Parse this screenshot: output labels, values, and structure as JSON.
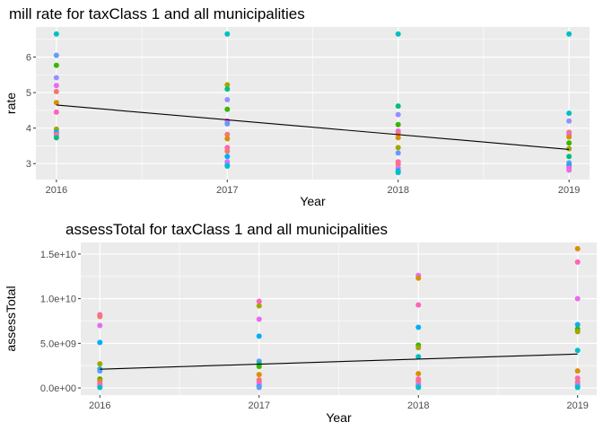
{
  "chart_data": [
    {
      "type": "scatter",
      "title": "mill rate for taxClass 1 and all municipalities",
      "xlabel": "Year",
      "ylabel": "rate",
      "x_ticks": [
        2016,
        2017,
        2018,
        2019
      ],
      "x_tick_labels": [
        "2016",
        "2017",
        "2018",
        "2019"
      ],
      "y_ticks": [
        3,
        4,
        5,
        6
      ],
      "y_tick_labels": [
        "3",
        "4",
        "5",
        "6"
      ],
      "xlim": [
        2015.88,
        2019.12
      ],
      "ylim": [
        2.55,
        6.85
      ],
      "grid": true,
      "legend": "none",
      "points": [
        {
          "x": 2016,
          "y": 6.65,
          "color": "#00BFC4"
        },
        {
          "x": 2016,
          "y": 6.05,
          "color": "#619CFF"
        },
        {
          "x": 2016,
          "y": 5.77,
          "color": "#39B600"
        },
        {
          "x": 2016,
          "y": 5.42,
          "color": "#9590FF"
        },
        {
          "x": 2016,
          "y": 5.2,
          "color": "#E76BF3"
        },
        {
          "x": 2016,
          "y": 5.03,
          "color": "#F8766D"
        },
        {
          "x": 2016,
          "y": 4.72,
          "color": "#D89000"
        },
        {
          "x": 2016,
          "y": 4.45,
          "color": "#FF62BC"
        },
        {
          "x": 2016,
          "y": 3.97,
          "color": "#A3A500"
        },
        {
          "x": 2016,
          "y": 3.88,
          "color": "#00B0F6"
        },
        {
          "x": 2016,
          "y": 3.82,
          "color": "#F8766D"
        },
        {
          "x": 2016,
          "y": 3.78,
          "color": "#E76BF3"
        },
        {
          "x": 2016,
          "y": 3.73,
          "color": "#00BF7D"
        },
        {
          "x": 2017,
          "y": 6.65,
          "color": "#00BFC4"
        },
        {
          "x": 2017,
          "y": 5.22,
          "color": "#A3A500"
        },
        {
          "x": 2017,
          "y": 5.1,
          "color": "#00BF7D"
        },
        {
          "x": 2017,
          "y": 4.8,
          "color": "#9590FF"
        },
        {
          "x": 2017,
          "y": 4.53,
          "color": "#39B600"
        },
        {
          "x": 2017,
          "y": 4.2,
          "color": "#E76BF3"
        },
        {
          "x": 2017,
          "y": 4.12,
          "color": "#619CFF"
        },
        {
          "x": 2017,
          "y": 3.82,
          "color": "#F8766D"
        },
        {
          "x": 2017,
          "y": 3.7,
          "color": "#D89000"
        },
        {
          "x": 2017,
          "y": 3.45,
          "color": "#FF62BC"
        },
        {
          "x": 2017,
          "y": 3.35,
          "color": "#F8766D"
        },
        {
          "x": 2017,
          "y": 3.2,
          "color": "#00B0F6"
        },
        {
          "x": 2017,
          "y": 3.05,
          "color": "#E76BF3"
        },
        {
          "x": 2017,
          "y": 2.97,
          "color": "#619CFF"
        },
        {
          "x": 2017,
          "y": 2.93,
          "color": "#00BFC4"
        },
        {
          "x": 2018,
          "y": 6.65,
          "color": "#00BFC4"
        },
        {
          "x": 2018,
          "y": 4.62,
          "color": "#00BF7D"
        },
        {
          "x": 2018,
          "y": 4.38,
          "color": "#9590FF"
        },
        {
          "x": 2018,
          "y": 4.1,
          "color": "#39B600"
        },
        {
          "x": 2018,
          "y": 3.92,
          "color": "#E76BF3"
        },
        {
          "x": 2018,
          "y": 3.85,
          "color": "#F8766D"
        },
        {
          "x": 2018,
          "y": 3.73,
          "color": "#D89000"
        },
        {
          "x": 2018,
          "y": 3.45,
          "color": "#A3A500"
        },
        {
          "x": 2018,
          "y": 3.3,
          "color": "#619CFF"
        },
        {
          "x": 2018,
          "y": 3.05,
          "color": "#FF62BC"
        },
        {
          "x": 2018,
          "y": 2.98,
          "color": "#F8766D"
        },
        {
          "x": 2018,
          "y": 2.88,
          "color": "#E76BF3"
        },
        {
          "x": 2018,
          "y": 2.8,
          "color": "#00B0F6"
        },
        {
          "x": 2018,
          "y": 2.75,
          "color": "#00BFC4"
        },
        {
          "x": 2019,
          "y": 6.65,
          "color": "#00BFC4"
        },
        {
          "x": 2019,
          "y": 4.42,
          "color": "#00BFC4"
        },
        {
          "x": 2019,
          "y": 4.2,
          "color": "#9590FF"
        },
        {
          "x": 2019,
          "y": 3.88,
          "color": "#F8766D"
        },
        {
          "x": 2019,
          "y": 3.82,
          "color": "#E76BF3"
        },
        {
          "x": 2019,
          "y": 3.75,
          "color": "#D89000"
        },
        {
          "x": 2019,
          "y": 3.58,
          "color": "#39B600"
        },
        {
          "x": 2019,
          "y": 3.42,
          "color": "#A3A500"
        },
        {
          "x": 2019,
          "y": 3.2,
          "color": "#00BF7D"
        },
        {
          "x": 2019,
          "y": 3.02,
          "color": "#619CFF"
        },
        {
          "x": 2019,
          "y": 2.95,
          "color": "#00B0F6"
        },
        {
          "x": 2019,
          "y": 2.88,
          "color": "#FF62BC"
        },
        {
          "x": 2019,
          "y": 2.82,
          "color": "#E76BF3"
        }
      ],
      "trend_line": {
        "x": [
          2016,
          2019
        ],
        "y": [
          4.65,
          3.4
        ],
        "color": "#000000"
      }
    },
    {
      "type": "scatter",
      "title": "assessTotal for taxClass 1 and all municipalities",
      "xlabel": "Year",
      "ylabel": "assessTotal",
      "x_ticks": [
        2016,
        2017,
        2018,
        2019
      ],
      "x_tick_labels": [
        "2016",
        "2017",
        "2018",
        "2019"
      ],
      "y_ticks": [
        0,
        5000000000,
        10000000000,
        15000000000
      ],
      "y_tick_labels": [
        "0.0e+00",
        "5.0e+09",
        "1.0e+10",
        "1.5e+10"
      ],
      "xlim": [
        2015.88,
        2019.12
      ],
      "ylim": [
        -800000000,
        16300000000
      ],
      "grid": true,
      "legend": "none",
      "points": [
        {
          "x": 2016,
          "y": 8200000000,
          "color": "#FF62BC"
        },
        {
          "x": 2016,
          "y": 8000000000,
          "color": "#F8766D"
        },
        {
          "x": 2016,
          "y": 7000000000,
          "color": "#E76BF3"
        },
        {
          "x": 2016,
          "y": 5100000000,
          "color": "#00B0F6"
        },
        {
          "x": 2016,
          "y": 2700000000,
          "color": "#A3A500"
        },
        {
          "x": 2016,
          "y": 2100000000,
          "color": "#00BFC4"
        },
        {
          "x": 2016,
          "y": 1900000000,
          "color": "#619CFF"
        },
        {
          "x": 2016,
          "y": 1000000000,
          "color": "#39B600"
        },
        {
          "x": 2016,
          "y": 800000000,
          "color": "#D89000"
        },
        {
          "x": 2016,
          "y": 500000000,
          "color": "#FF62BC"
        },
        {
          "x": 2016,
          "y": 300000000,
          "color": "#F8766D"
        },
        {
          "x": 2016,
          "y": 150000000,
          "color": "#E76BF3"
        },
        {
          "x": 2016,
          "y": 50000000,
          "color": "#00BFC4"
        },
        {
          "x": 2017,
          "y": 9700000000,
          "color": "#FF62BC"
        },
        {
          "x": 2017,
          "y": 9200000000,
          "color": "#A3A500"
        },
        {
          "x": 2017,
          "y": 7700000000,
          "color": "#E76BF3"
        },
        {
          "x": 2017,
          "y": 5800000000,
          "color": "#00B0F6"
        },
        {
          "x": 2017,
          "y": 3000000000,
          "color": "#619CFF"
        },
        {
          "x": 2017,
          "y": 2700000000,
          "color": "#00BF7D"
        },
        {
          "x": 2017,
          "y": 2400000000,
          "color": "#39B600"
        },
        {
          "x": 2017,
          "y": 1500000000,
          "color": "#D89000"
        },
        {
          "x": 2017,
          "y": 900000000,
          "color": "#F8766D"
        },
        {
          "x": 2017,
          "y": 600000000,
          "color": "#FF62BC"
        },
        {
          "x": 2017,
          "y": 300000000,
          "color": "#E76BF3"
        },
        {
          "x": 2017,
          "y": 150000000,
          "color": "#00BFC4"
        },
        {
          "x": 2017,
          "y": 50000000,
          "color": "#619CFF"
        },
        {
          "x": 2018,
          "y": 12600000000,
          "color": "#E76BF3"
        },
        {
          "x": 2018,
          "y": 12300000000,
          "color": "#D89000"
        },
        {
          "x": 2018,
          "y": 9300000000,
          "color": "#FF62BC"
        },
        {
          "x": 2018,
          "y": 6800000000,
          "color": "#00B0F6"
        },
        {
          "x": 2018,
          "y": 4800000000,
          "color": "#39B600"
        },
        {
          "x": 2018,
          "y": 4500000000,
          "color": "#A3A500"
        },
        {
          "x": 2018,
          "y": 3500000000,
          "color": "#00BFC4"
        },
        {
          "x": 2018,
          "y": 1600000000,
          "color": "#D89000"
        },
        {
          "x": 2018,
          "y": 1000000000,
          "color": "#FF62BC"
        },
        {
          "x": 2018,
          "y": 700000000,
          "color": "#F8766D"
        },
        {
          "x": 2018,
          "y": 400000000,
          "color": "#E76BF3"
        },
        {
          "x": 2018,
          "y": 200000000,
          "color": "#619CFF"
        },
        {
          "x": 2018,
          "y": 50000000,
          "color": "#00BFC4"
        },
        {
          "x": 2019,
          "y": 15600000000,
          "color": "#D89000"
        },
        {
          "x": 2019,
          "y": 14100000000,
          "color": "#FF62BC"
        },
        {
          "x": 2019,
          "y": 10000000000,
          "color": "#E76BF3"
        },
        {
          "x": 2019,
          "y": 7100000000,
          "color": "#00B0F6"
        },
        {
          "x": 2019,
          "y": 6600000000,
          "color": "#39B600"
        },
        {
          "x": 2019,
          "y": 6300000000,
          "color": "#A3A500"
        },
        {
          "x": 2019,
          "y": 4200000000,
          "color": "#00BFC4"
        },
        {
          "x": 2019,
          "y": 1900000000,
          "color": "#D89000"
        },
        {
          "x": 2019,
          "y": 1100000000,
          "color": "#FF62BC"
        },
        {
          "x": 2019,
          "y": 700000000,
          "color": "#F8766D"
        },
        {
          "x": 2019,
          "y": 400000000,
          "color": "#E76BF3"
        },
        {
          "x": 2019,
          "y": 200000000,
          "color": "#619CFF"
        },
        {
          "x": 2019,
          "y": 50000000,
          "color": "#00BFC4"
        }
      ],
      "trend_line": {
        "x": [
          2016,
          2019
        ],
        "y": [
          2100000000,
          3800000000
        ],
        "color": "#000000"
      }
    }
  ]
}
